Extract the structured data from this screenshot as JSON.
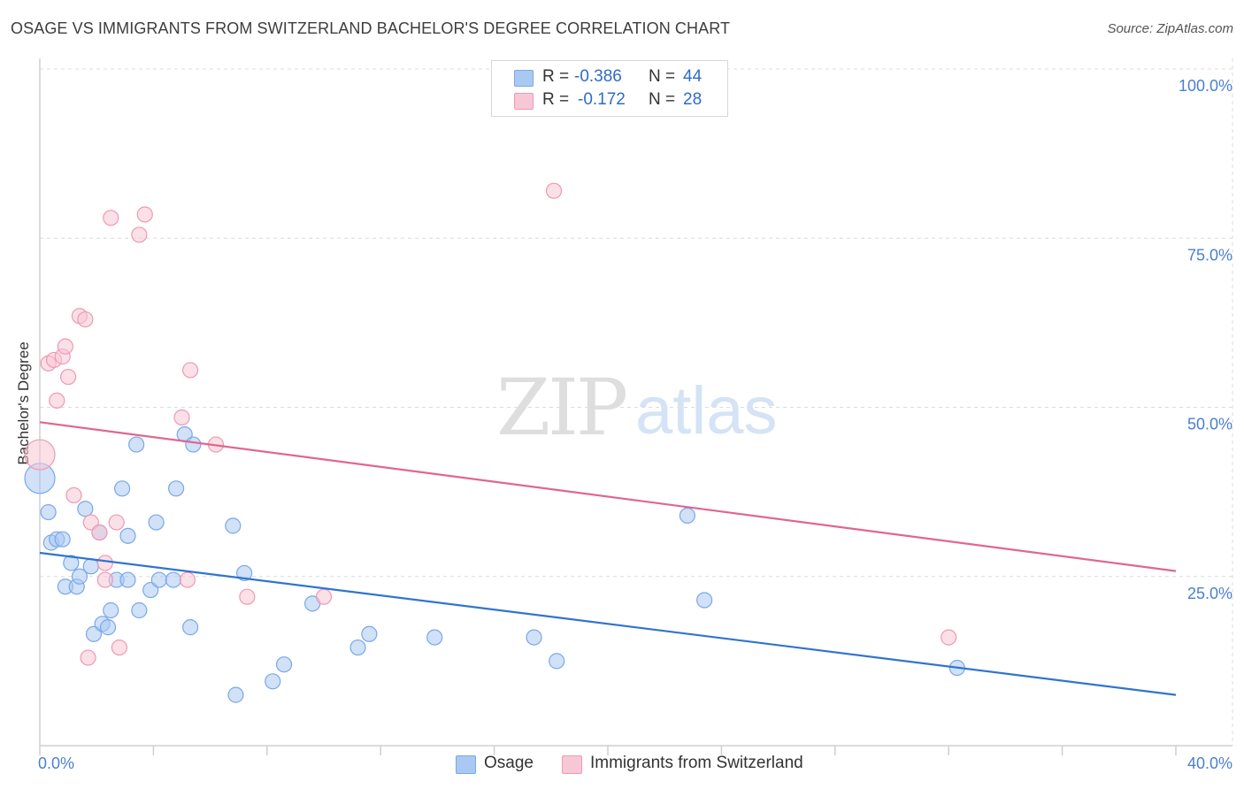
{
  "title": "OSAGE VS IMMIGRANTS FROM SWITZERLAND BACHELOR'S DEGREE CORRELATION CHART",
  "source": "Source: ZipAtlas.com",
  "watermark": {
    "zip": "ZIP",
    "atlas": "atlas"
  },
  "stats": [
    {
      "r_label": "R =",
      "r_value": "-0.386",
      "n_label": "N =",
      "n_value": "44",
      "color": "#a9c9f2",
      "border": "#7aa8e6"
    },
    {
      "r_label": "R =",
      "r_value": "-0.172",
      "n_label": "N =",
      "n_value": "28",
      "color": "#f8c7d6",
      "border": "#ee99b3"
    }
  ],
  "chart_data": {
    "type": "scatter",
    "title": "OSAGE VS IMMIGRANTS FROM SWITZERLAND BACHELOR'S DEGREE CORRELATION CHART",
    "xlabel": "",
    "ylabel": "Bachelor's Degree",
    "xlim": [
      0,
      40
    ],
    "ylim": [
      0,
      100
    ],
    "x_tick_labels": [
      "0.0%",
      "40.0%"
    ],
    "y_ticks": [
      25,
      50,
      75,
      100
    ],
    "y_tick_labels": [
      "25.0%",
      "50.0%",
      "75.0%",
      "100.0%"
    ],
    "grid": true,
    "legend_position": "bottom-center",
    "series": [
      {
        "name": "Osage",
        "color": "#a9c9f2",
        "stroke": "#7aa8e6",
        "line_color": "#2f74d0",
        "trend": {
          "x": [
            0,
            40
          ],
          "y": [
            28.5,
            7.5
          ]
        },
        "points": [
          {
            "x": 0.0,
            "y": 39.5,
            "big": true
          },
          {
            "x": 0.3,
            "y": 34.5
          },
          {
            "x": 0.4,
            "y": 30.0
          },
          {
            "x": 0.6,
            "y": 30.5
          },
          {
            "x": 0.8,
            "y": 30.5
          },
          {
            "x": 0.9,
            "y": 23.5
          },
          {
            "x": 1.1,
            "y": 27.0
          },
          {
            "x": 1.3,
            "y": 23.5
          },
          {
            "x": 1.4,
            "y": 25.0
          },
          {
            "x": 1.6,
            "y": 35.0
          },
          {
            "x": 1.8,
            "y": 26.5
          },
          {
            "x": 1.9,
            "y": 16.5
          },
          {
            "x": 2.1,
            "y": 31.5
          },
          {
            "x": 2.2,
            "y": 18.0
          },
          {
            "x": 2.4,
            "y": 17.5
          },
          {
            "x": 2.5,
            "y": 20.0
          },
          {
            "x": 2.7,
            "y": 24.5
          },
          {
            "x": 2.9,
            "y": 38.0
          },
          {
            "x": 3.1,
            "y": 31.0
          },
          {
            "x": 3.1,
            "y": 24.5
          },
          {
            "x": 3.4,
            "y": 44.5
          },
          {
            "x": 3.5,
            "y": 20.0
          },
          {
            "x": 3.9,
            "y": 23.0
          },
          {
            "x": 4.1,
            "y": 33.0
          },
          {
            "x": 4.2,
            "y": 24.5
          },
          {
            "x": 4.7,
            "y": 24.5
          },
          {
            "x": 4.8,
            "y": 38.0
          },
          {
            "x": 5.1,
            "y": 46.0
          },
          {
            "x": 5.3,
            "y": 17.5
          },
          {
            "x": 5.4,
            "y": 44.5
          },
          {
            "x": 6.8,
            "y": 32.5
          },
          {
            "x": 6.9,
            "y": 7.5
          },
          {
            "x": 7.2,
            "y": 25.5
          },
          {
            "x": 8.2,
            "y": 9.5
          },
          {
            "x": 8.6,
            "y": 12.0
          },
          {
            "x": 9.6,
            "y": 21.0
          },
          {
            "x": 11.2,
            "y": 14.5
          },
          {
            "x": 11.6,
            "y": 16.5
          },
          {
            "x": 13.9,
            "y": 16.0
          },
          {
            "x": 17.4,
            "y": 16.0
          },
          {
            "x": 18.2,
            "y": 12.5
          },
          {
            "x": 22.8,
            "y": 34.0
          },
          {
            "x": 23.4,
            "y": 21.5
          },
          {
            "x": 32.3,
            "y": 11.5
          }
        ]
      },
      {
        "name": "Immigrants from Switzerland",
        "color": "#f8c7d6",
        "stroke": "#ee99b3",
        "line_color": "#e0668f",
        "trend": {
          "x": [
            0,
            40
          ],
          "y": [
            47.8,
            25.8
          ]
        },
        "points": [
          {
            "x": 0.0,
            "y": 43.0,
            "big": true
          },
          {
            "x": 0.3,
            "y": 56.5
          },
          {
            "x": 0.5,
            "y": 57.0
          },
          {
            "x": 0.6,
            "y": 51.0
          },
          {
            "x": 0.8,
            "y": 57.5
          },
          {
            "x": 0.9,
            "y": 59.0
          },
          {
            "x": 1.0,
            "y": 54.5
          },
          {
            "x": 1.2,
            "y": 37.0
          },
          {
            "x": 1.4,
            "y": 63.5
          },
          {
            "x": 1.6,
            "y": 63.0
          },
          {
            "x": 1.7,
            "y": 13.0
          },
          {
            "x": 1.8,
            "y": 33.0
          },
          {
            "x": 2.1,
            "y": 31.5
          },
          {
            "x": 2.3,
            "y": 27.0
          },
          {
            "x": 2.3,
            "y": 24.5
          },
          {
            "x": 2.5,
            "y": 78.0
          },
          {
            "x": 2.7,
            "y": 33.0
          },
          {
            "x": 2.8,
            "y": 14.5
          },
          {
            "x": 3.5,
            "y": 75.5
          },
          {
            "x": 3.7,
            "y": 78.5
          },
          {
            "x": 5.0,
            "y": 48.5
          },
          {
            "x": 5.2,
            "y": 24.5
          },
          {
            "x": 5.3,
            "y": 55.5
          },
          {
            "x": 6.2,
            "y": 44.5
          },
          {
            "x": 7.3,
            "y": 22.0
          },
          {
            "x": 10.0,
            "y": 22.0
          },
          {
            "x": 18.1,
            "y": 82.0
          },
          {
            "x": 32.0,
            "y": 16.0
          }
        ]
      }
    ]
  }
}
